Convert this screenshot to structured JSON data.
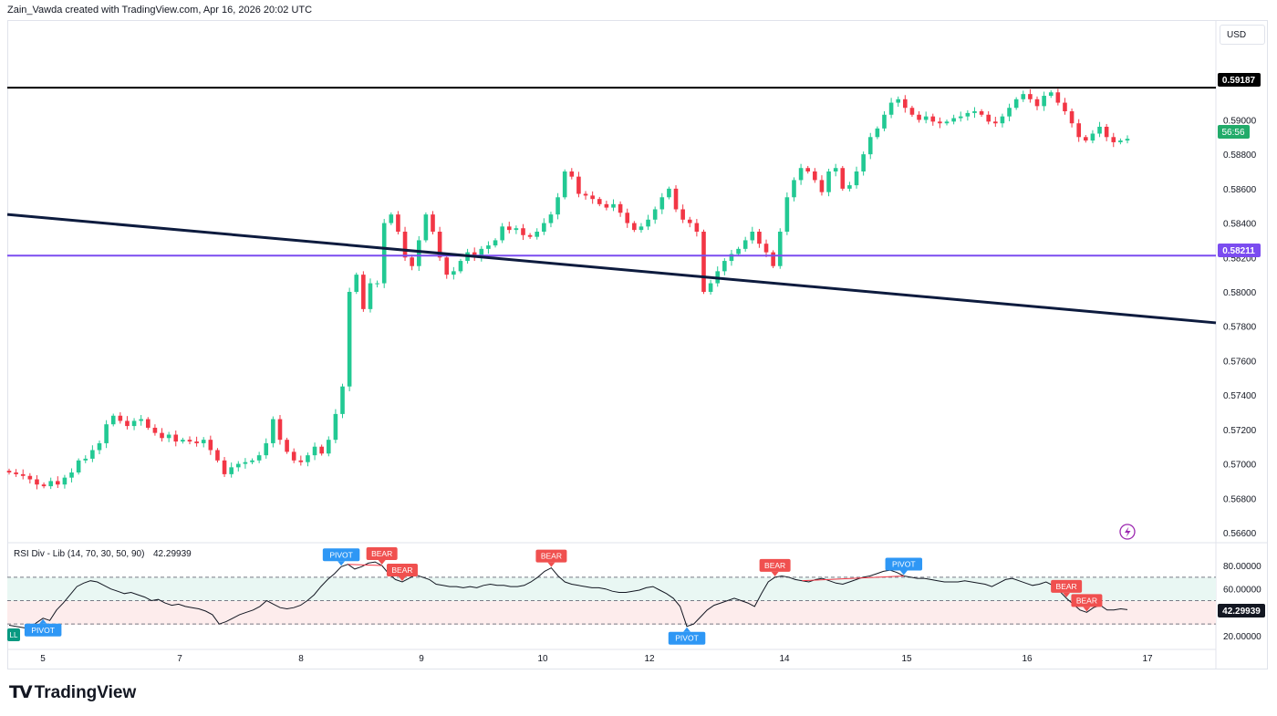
{
  "header": {
    "attribution": "Zain_Vawda created with TradingView.com, Apr 16, 2026 20:02 UTC"
  },
  "toolbar": {
    "currency": "USD"
  },
  "footer": {
    "brand": "TradingView"
  },
  "colors": {
    "up": "#089981",
    "down": "#f23645",
    "upBright": "#22c993",
    "horizontalLine": "#000000",
    "supportLine": "#7b4cf0",
    "trendLine": "#0d1b3e",
    "pivotTag": "#2e97f5",
    "bearTag": "#f0504f",
    "countdownBg": "#22ab6a"
  },
  "price_labels": {
    "resistance": "0.59187",
    "support": "0.58211",
    "countdown": "56:56"
  },
  "indicator": {
    "title": "RSI Div - Lib (14, 70, 30, 50, 90)",
    "value": "42.29939",
    "levels": [
      "80.00000",
      "60.00000",
      "20.00000"
    ],
    "tags": {
      "pivot": "PIVOT",
      "bear": "BEAR",
      "bull": "LL"
    }
  },
  "chart_data": [
    {
      "type": "candlestick",
      "title": "",
      "y_ticks": [
        "0.56600",
        "0.56800",
        "0.57000",
        "0.57200",
        "0.57400",
        "0.57600",
        "0.57800",
        "0.58000",
        "0.58200",
        "0.58400",
        "0.58600",
        "0.58800",
        "0.59000"
      ],
      "ylim": [
        0.5655,
        0.5965
      ],
      "x_ticks": [
        "5",
        "7",
        "8",
        "9",
        "10",
        "12",
        "14",
        "15",
        "16",
        "17"
      ],
      "horizontal_lines": [
        0.59187,
        0.58211
      ],
      "trend_line": {
        "start_price": 0.5845,
        "end_price": 0.5782
      },
      "closes": [
        0.5695,
        0.5694,
        0.5693,
        0.5691,
        0.5688,
        0.5687,
        0.569,
        0.5688,
        0.5692,
        0.5695,
        0.5702,
        0.5703,
        0.5708,
        0.5712,
        0.5723,
        0.5728,
        0.5725,
        0.5722,
        0.5725,
        0.5726,
        0.5721,
        0.5718,
        0.5715,
        0.5717,
        0.5713,
        0.5714,
        0.5713,
        0.5712,
        0.5714,
        0.5708,
        0.5702,
        0.5694,
        0.5698,
        0.57,
        0.5701,
        0.5702,
        0.5705,
        0.5712,
        0.5726,
        0.5714,
        0.5707,
        0.5702,
        0.5701,
        0.5705,
        0.571,
        0.5706,
        0.5714,
        0.5729,
        0.5745,
        0.58,
        0.581,
        0.579,
        0.5805,
        0.5805,
        0.584,
        0.5845,
        0.5835,
        0.582,
        0.5815,
        0.583,
        0.5845,
        0.5835,
        0.582,
        0.581,
        0.5812,
        0.5818,
        0.5823,
        0.582,
        0.5825,
        0.5827,
        0.583,
        0.5838,
        0.5836,
        0.5837,
        0.5833,
        0.5832,
        0.5835,
        0.584,
        0.5845,
        0.5855,
        0.587,
        0.5867,
        0.5857,
        0.5856,
        0.5854,
        0.5851,
        0.5849,
        0.5851,
        0.5846,
        0.584,
        0.5836,
        0.5838,
        0.5842,
        0.5848,
        0.5855,
        0.586,
        0.5848,
        0.5842,
        0.584,
        0.5835,
        0.58,
        0.5805,
        0.5812,
        0.5818,
        0.5822,
        0.5825,
        0.583,
        0.5835,
        0.5828,
        0.5823,
        0.5815,
        0.5835,
        0.5855,
        0.5865,
        0.5872,
        0.587,
        0.5865,
        0.5858,
        0.587,
        0.5872,
        0.586,
        0.5862,
        0.587,
        0.588,
        0.589,
        0.5895,
        0.5903,
        0.591,
        0.5912,
        0.5907,
        0.5903,
        0.59,
        0.5902,
        0.5899,
        0.5898,
        0.5899,
        0.5901,
        0.5902,
        0.5904,
        0.5905,
        0.5903,
        0.5899,
        0.5898,
        0.5902,
        0.5907,
        0.5912,
        0.5915,
        0.5912,
        0.5908,
        0.5914,
        0.5916,
        0.591,
        0.5905,
        0.5898,
        0.589,
        0.5888,
        0.5892,
        0.5896,
        0.589,
        0.5887,
        0.5888,
        0.5889
      ],
      "rsi": {
        "ylim": [
          10,
          90
        ],
        "values": [
          29,
          28,
          27,
          26,
          31,
          35,
          33,
          42,
          48,
          55,
          62,
          65,
          67,
          66,
          63,
          60,
          58,
          56,
          57,
          55,
          53,
          50,
          51,
          48,
          46,
          47,
          45,
          44,
          43,
          41,
          38,
          30,
          32,
          35,
          38,
          40,
          42,
          45,
          50,
          47,
          44,
          43,
          44,
          46,
          50,
          55,
          62,
          68,
          73,
          79,
          81,
          77,
          79,
          82,
          83,
          80,
          73,
          68,
          66,
          69,
          72,
          70,
          68,
          64,
          63,
          62,
          62,
          61,
          62,
          61,
          63,
          64,
          63,
          63,
          62,
          62,
          63,
          66,
          70,
          75,
          78,
          71,
          66,
          64,
          63,
          62,
          61,
          61,
          60,
          58,
          57,
          57,
          58,
          59,
          61,
          62,
          59,
          56,
          52,
          45,
          28,
          30,
          36,
          42,
          46,
          48,
          50,
          52,
          50,
          48,
          45,
          56,
          66,
          70,
          71,
          70,
          68,
          67,
          66,
          68,
          69,
          67,
          65,
          64,
          66,
          68,
          70,
          71,
          73,
          75,
          76,
          74,
          71,
          70,
          69,
          69,
          68,
          67,
          66,
          66,
          66,
          67,
          66,
          65,
          64,
          62,
          65,
          68,
          69,
          67,
          65,
          63,
          64,
          66,
          63,
          58,
          52,
          47,
          42,
          40,
          44,
          46,
          42,
          42,
          43,
          42.3
        ]
      }
    }
  ]
}
